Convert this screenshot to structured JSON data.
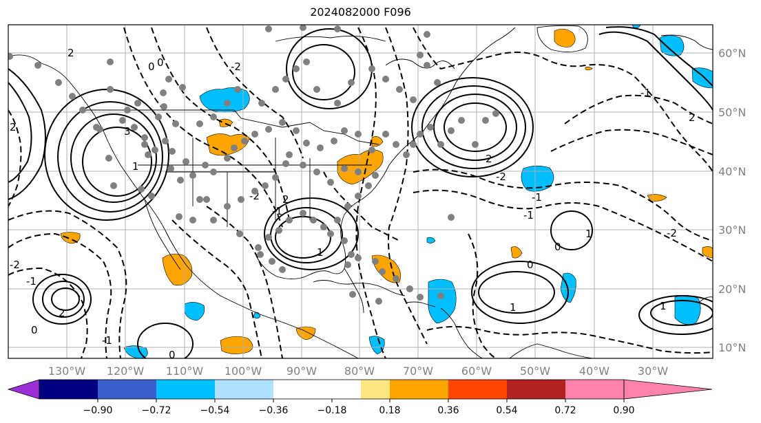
{
  "title": "2024082000 F096",
  "map": {
    "lon_range": [
      -140,
      -19
    ],
    "lat_range": [
      8,
      65
    ],
    "lon_labels": [
      "130°W",
      "120°W",
      "110°W",
      "100°W",
      "90°W",
      "80°W",
      "70°W",
      "60°W",
      "50°W",
      "40°W",
      "30°W"
    ],
    "lat_labels": [
      "10°N",
      "20°N",
      "30°N",
      "40°N",
      "50°N",
      "60°N"
    ],
    "contour_labels": [
      "2",
      "3",
      "0",
      "1",
      "2",
      "-2",
      "-1",
      "0",
      "-1",
      "-2",
      "2",
      "1",
      "2",
      "-2",
      "-1",
      "0",
      "2",
      "-2",
      "0",
      "-1",
      "1",
      "0",
      "1",
      "-1",
      "0",
      "1",
      "-1",
      "-2",
      "2"
    ]
  },
  "colorbar": {
    "colors": [
      "#9b30d9",
      "#000080",
      "#3a5fcd",
      "#00bfff",
      "#b0e2ff",
      "#ffffff",
      "#ffffff",
      "#ffe680",
      "#ffa500",
      "#ff4500",
      "#b22222",
      "#ff82ab"
    ],
    "ticks": [
      "−0.90",
      "−0.72",
      "−0.54",
      "−0.36",
      "−0.18",
      "0.18",
      "0.36",
      "0.54",
      "0.72",
      "0.90"
    ]
  }
}
